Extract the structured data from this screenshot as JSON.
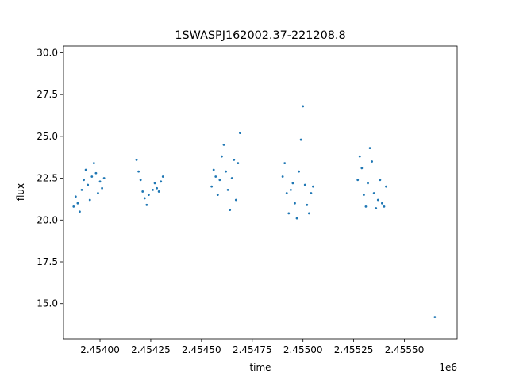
{
  "chart_data": {
    "type": "scatter",
    "title": "1SWASPJ162002.37-221208.8",
    "xlabel": "time",
    "ylabel": "flux",
    "x_offset_label": "1e6",
    "xlim": [
      2.45382,
      2.45576
    ],
    "ylim": [
      12.9,
      30.4
    ],
    "x_ticks": [
      2.454,
      2.45425,
      2.4545,
      2.45475,
      2.455,
      2.45525,
      2.4555
    ],
    "x_tick_labels": [
      "2.45400",
      "2.45425",
      "2.45450",
      "2.45475",
      "2.45500",
      "2.45525",
      "2.45550"
    ],
    "y_ticks": [
      15.0,
      17.5,
      20.0,
      22.5,
      25.0,
      27.5,
      30.0
    ],
    "y_tick_labels": [
      "15.0",
      "17.5",
      "20.0",
      "22.5",
      "25.0",
      "27.5",
      "30.0"
    ],
    "grid": false,
    "marker_color": "#1f77b4",
    "series": [
      {
        "x": [
          2.45387,
          2.45388,
          2.45389,
          2.4539,
          2.45391,
          2.45392,
          2.45393,
          2.45394,
          2.45395,
          2.45396,
          2.45397,
          2.45398,
          2.45399,
          2.454,
          2.45401,
          2.45402,
          2.45418,
          2.45419,
          2.4542,
          2.45421,
          2.45422,
          2.45423,
          2.45424,
          2.45426,
          2.45427,
          2.45428,
          2.45429,
          2.4543,
          2.45431,
          2.45455,
          2.45456,
          2.45457,
          2.45458,
          2.45459,
          2.4546,
          2.45461,
          2.45462,
          2.45463,
          2.45464,
          2.45465,
          2.45466,
          2.45467,
          2.45468,
          2.45469,
          2.4549,
          2.45491,
          2.45492,
          2.45493,
          2.45494,
          2.45495,
          2.45496,
          2.45497,
          2.45498,
          2.45499,
          2.455,
          2.45501,
          2.45502,
          2.45503,
          2.45504,
          2.45505,
          2.45527,
          2.45528,
          2.45529,
          2.4553,
          2.45531,
          2.45532,
          2.45533,
          2.45534,
          2.45535,
          2.45536,
          2.45537,
          2.45538,
          2.45539,
          2.4554,
          2.45541,
          2.45565
        ],
        "y": [
          20.8,
          21.4,
          21.0,
          20.5,
          21.8,
          22.4,
          23.0,
          22.1,
          21.2,
          22.6,
          23.4,
          22.8,
          21.6,
          22.3,
          21.9,
          22.5,
          23.6,
          22.9,
          22.4,
          21.7,
          21.3,
          20.9,
          21.5,
          21.8,
          22.2,
          21.9,
          21.7,
          22.3,
          22.6,
          22.0,
          23.0,
          22.6,
          21.5,
          22.4,
          23.8,
          24.5,
          22.9,
          21.8,
          20.6,
          22.5,
          23.6,
          21.2,
          23.4,
          25.2,
          22.6,
          23.4,
          21.6,
          20.4,
          21.8,
          22.2,
          21.0,
          20.1,
          22.9,
          24.8,
          26.8,
          22.1,
          20.9,
          20.4,
          21.6,
          22.0,
          22.4,
          23.8,
          23.1,
          21.5,
          20.8,
          22.2,
          24.3,
          23.5,
          21.6,
          20.7,
          21.2,
          22.4,
          21.0,
          20.8,
          22.0,
          14.2
        ]
      }
    ]
  }
}
